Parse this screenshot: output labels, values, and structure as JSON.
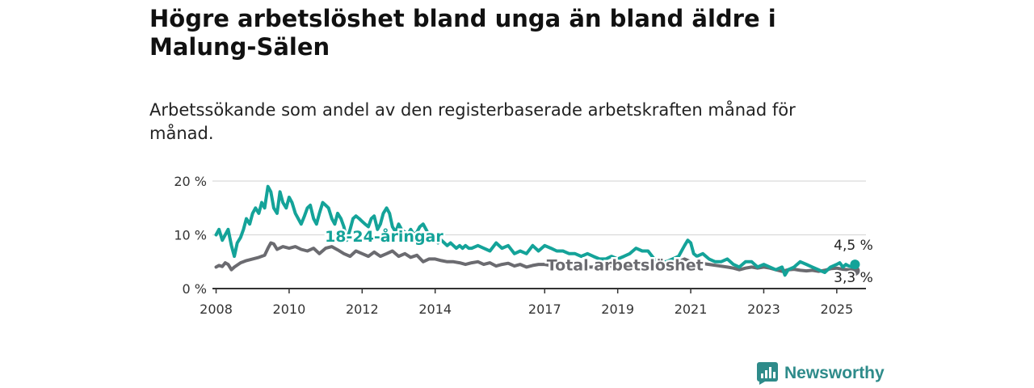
{
  "title": "Högre arbetslöshet bland unga än bland äldre i Malung-Sälen",
  "subtitle": "Arbetssökande som andel av den registerbaserade arbetskraften månad för månad.",
  "brand": {
    "name": "Newsworthy",
    "icon": "bar-chart-logo-icon"
  },
  "colors": {
    "youth": "#14a399",
    "total": "#6b6b70",
    "grid": "#d9d9d9",
    "axis": "#333333",
    "brand": "#2e8b8a"
  },
  "chart_data": {
    "type": "line",
    "title": "Högre arbetslöshet bland unga än bland äldre i Malung-Sälen",
    "subtitle": "Arbetssökande som andel av den registerbaserade arbetskraften månad för månad.",
    "xlabel": "",
    "ylabel": "",
    "y_unit": "%",
    "ylim": [
      0,
      20
    ],
    "y_ticks": [
      0,
      10,
      20
    ],
    "y_tick_labels": [
      "0 %",
      "10 %",
      "20 %"
    ],
    "x_ticks": [
      2008,
      2010,
      2012,
      2014,
      2017,
      2019,
      2021,
      2023,
      2025
    ],
    "x_tick_labels": [
      "2008",
      "2010",
      "2012",
      "2014",
      "2017",
      "2019",
      "2021",
      "2023",
      "2025"
    ],
    "xlim": [
      2007.9,
      2025.8
    ],
    "grid": "horizontal",
    "legend": "inline labels",
    "series": [
      {
        "name": "18-24-åringar",
        "label_pos": [
          2012.6,
          9.8
        ],
        "end_label": "4,5 %",
        "points": [
          [
            2008.0,
            10.0
          ],
          [
            2008.08,
            11.0
          ],
          [
            2008.17,
            9.0
          ],
          [
            2008.25,
            10.0
          ],
          [
            2008.33,
            11.0
          ],
          [
            2008.42,
            8.0
          ],
          [
            2008.5,
            6.0
          ],
          [
            2008.58,
            8.5
          ],
          [
            2008.67,
            9.5
          ],
          [
            2008.75,
            11.0
          ],
          [
            2008.83,
            13.0
          ],
          [
            2008.92,
            12.0
          ],
          [
            2009.0,
            14.0
          ],
          [
            2009.08,
            15.0
          ],
          [
            2009.17,
            14.0
          ],
          [
            2009.25,
            16.0
          ],
          [
            2009.33,
            15.0
          ],
          [
            2009.42,
            19.0
          ],
          [
            2009.5,
            18.0
          ],
          [
            2009.58,
            15.0
          ],
          [
            2009.67,
            14.0
          ],
          [
            2009.75,
            18.0
          ],
          [
            2009.83,
            16.0
          ],
          [
            2009.92,
            15.0
          ],
          [
            2010.0,
            17.0
          ],
          [
            2010.08,
            16.0
          ],
          [
            2010.17,
            14.0
          ],
          [
            2010.25,
            13.0
          ],
          [
            2010.33,
            12.0
          ],
          [
            2010.42,
            13.5
          ],
          [
            2010.5,
            15.0
          ],
          [
            2010.58,
            15.5
          ],
          [
            2010.67,
            13.0
          ],
          [
            2010.75,
            12.0
          ],
          [
            2010.83,
            14.0
          ],
          [
            2010.92,
            16.0
          ],
          [
            2011.0,
            15.5
          ],
          [
            2011.08,
            15.0
          ],
          [
            2011.17,
            13.0
          ],
          [
            2011.25,
            12.0
          ],
          [
            2011.33,
            14.0
          ],
          [
            2011.42,
            13.0
          ],
          [
            2011.5,
            11.5
          ],
          [
            2011.58,
            9.0
          ],
          [
            2011.67,
            11.0
          ],
          [
            2011.75,
            13.0
          ],
          [
            2011.83,
            13.5
          ],
          [
            2011.92,
            13.0
          ],
          [
            2012.0,
            12.5
          ],
          [
            2012.08,
            12.0
          ],
          [
            2012.17,
            11.5
          ],
          [
            2012.25,
            13.0
          ],
          [
            2012.33,
            13.5
          ],
          [
            2012.42,
            11.0
          ],
          [
            2012.5,
            12.0
          ],
          [
            2012.58,
            14.0
          ],
          [
            2012.67,
            15.0
          ],
          [
            2012.75,
            14.0
          ],
          [
            2012.83,
            11.5
          ],
          [
            2012.92,
            10.5
          ],
          [
            2013.0,
            12.0
          ],
          [
            2013.08,
            11.0
          ],
          [
            2013.17,
            10.5
          ],
          [
            2013.25,
            10.0
          ],
          [
            2013.33,
            11.0
          ],
          [
            2013.42,
            10.0
          ],
          [
            2013.5,
            10.5
          ],
          [
            2013.58,
            11.5
          ],
          [
            2013.67,
            12.0
          ],
          [
            2013.75,
            11.0
          ],
          [
            2013.83,
            10.0
          ],
          [
            2013.92,
            9.5
          ],
          [
            2014.0,
            9.0
          ],
          [
            2014.08,
            8.5
          ],
          [
            2014.17,
            9.0
          ],
          [
            2014.25,
            8.5
          ],
          [
            2014.33,
            8.0
          ],
          [
            2014.42,
            8.5
          ],
          [
            2014.5,
            8.0
          ],
          [
            2014.58,
            7.5
          ],
          [
            2014.67,
            8.0
          ],
          [
            2014.75,
            7.5
          ],
          [
            2014.83,
            8.0
          ],
          [
            2014.92,
            7.5
          ],
          [
            2015.0,
            7.5
          ],
          [
            2015.17,
            8.0
          ],
          [
            2015.33,
            7.5
          ],
          [
            2015.5,
            7.0
          ],
          [
            2015.67,
            8.5
          ],
          [
            2015.83,
            7.5
          ],
          [
            2016.0,
            8.0
          ],
          [
            2016.17,
            6.5
          ],
          [
            2016.33,
            7.0
          ],
          [
            2016.5,
            6.5
          ],
          [
            2016.67,
            8.0
          ],
          [
            2016.83,
            7.0
          ],
          [
            2017.0,
            8.0
          ],
          [
            2017.17,
            7.5
          ],
          [
            2017.33,
            7.0
          ],
          [
            2017.5,
            7.0
          ],
          [
            2017.67,
            6.5
          ],
          [
            2017.83,
            6.5
          ],
          [
            2018.0,
            6.0
          ],
          [
            2018.17,
            6.5
          ],
          [
            2018.33,
            6.0
          ],
          [
            2018.5,
            5.5
          ],
          [
            2018.67,
            5.5
          ],
          [
            2018.83,
            6.0
          ],
          [
            2019.0,
            5.5
          ],
          [
            2019.17,
            6.0
          ],
          [
            2019.33,
            6.5
          ],
          [
            2019.5,
            7.5
          ],
          [
            2019.67,
            7.0
          ],
          [
            2019.83,
            7.0
          ],
          [
            2020.0,
            5.5
          ],
          [
            2020.17,
            5.0
          ],
          [
            2020.33,
            5.0
          ],
          [
            2020.5,
            5.5
          ],
          [
            2020.67,
            6.0
          ],
          [
            2020.83,
            8.0
          ],
          [
            2020.92,
            9.0
          ],
          [
            2021.0,
            8.5
          ],
          [
            2021.08,
            6.5
          ],
          [
            2021.17,
            6.0
          ],
          [
            2021.33,
            6.5
          ],
          [
            2021.5,
            5.5
          ],
          [
            2021.67,
            5.0
          ],
          [
            2021.83,
            5.0
          ],
          [
            2022.0,
            5.5
          ],
          [
            2022.17,
            4.5
          ],
          [
            2022.33,
            4.0
          ],
          [
            2022.5,
            5.0
          ],
          [
            2022.67,
            5.0
          ],
          [
            2022.83,
            4.0
          ],
          [
            2023.0,
            4.5
          ],
          [
            2023.17,
            4.0
          ],
          [
            2023.33,
            3.5
          ],
          [
            2023.5,
            4.0
          ],
          [
            2023.58,
            2.5
          ],
          [
            2023.67,
            3.5
          ],
          [
            2023.83,
            4.0
          ],
          [
            2024.0,
            5.0
          ],
          [
            2024.17,
            4.5
          ],
          [
            2024.33,
            4.0
          ],
          [
            2024.5,
            3.5
          ],
          [
            2024.67,
            3.0
          ],
          [
            2024.83,
            4.0
          ],
          [
            2025.0,
            4.5
          ],
          [
            2025.08,
            4.8
          ],
          [
            2025.17,
            4.0
          ],
          [
            2025.25,
            4.5
          ],
          [
            2025.33,
            4.2
          ],
          [
            2025.42,
            4.0
          ],
          [
            2025.5,
            4.5
          ]
        ]
      },
      {
        "name": "Total arbetslöshet",
        "label_pos": [
          2019.2,
          4.4
        ],
        "end_label": "3,3 %",
        "points": [
          [
            2008.0,
            4.0
          ],
          [
            2008.08,
            4.3
          ],
          [
            2008.17,
            4.1
          ],
          [
            2008.25,
            4.8
          ],
          [
            2008.33,
            4.5
          ],
          [
            2008.42,
            3.5
          ],
          [
            2008.5,
            4.0
          ],
          [
            2008.67,
            4.8
          ],
          [
            2008.83,
            5.2
          ],
          [
            2009.0,
            5.5
          ],
          [
            2009.17,
            5.8
          ],
          [
            2009.33,
            6.2
          ],
          [
            2009.42,
            7.5
          ],
          [
            2009.5,
            8.5
          ],
          [
            2009.58,
            8.3
          ],
          [
            2009.67,
            7.3
          ],
          [
            2009.83,
            7.8
          ],
          [
            2010.0,
            7.5
          ],
          [
            2010.17,
            7.8
          ],
          [
            2010.33,
            7.3
          ],
          [
            2010.5,
            7.0
          ],
          [
            2010.67,
            7.5
          ],
          [
            2010.83,
            6.5
          ],
          [
            2011.0,
            7.5
          ],
          [
            2011.17,
            7.8
          ],
          [
            2011.33,
            7.2
          ],
          [
            2011.5,
            6.5
          ],
          [
            2011.67,
            6.0
          ],
          [
            2011.83,
            7.0
          ],
          [
            2012.0,
            6.5
          ],
          [
            2012.17,
            6.0
          ],
          [
            2012.33,
            6.8
          ],
          [
            2012.5,
            6.0
          ],
          [
            2012.67,
            6.5
          ],
          [
            2012.83,
            7.0
          ],
          [
            2013.0,
            6.0
          ],
          [
            2013.17,
            6.5
          ],
          [
            2013.33,
            5.8
          ],
          [
            2013.5,
            6.2
          ],
          [
            2013.67,
            5.0
          ],
          [
            2013.83,
            5.5
          ],
          [
            2014.0,
            5.5
          ],
          [
            2014.17,
            5.2
          ],
          [
            2014.33,
            5.0
          ],
          [
            2014.5,
            5.0
          ],
          [
            2014.67,
            4.8
          ],
          [
            2014.83,
            4.5
          ],
          [
            2015.0,
            4.8
          ],
          [
            2015.17,
            5.0
          ],
          [
            2015.33,
            4.5
          ],
          [
            2015.5,
            4.8
          ],
          [
            2015.67,
            4.2
          ],
          [
            2015.83,
            4.5
          ],
          [
            2016.0,
            4.7
          ],
          [
            2016.17,
            4.2
          ],
          [
            2016.33,
            4.5
          ],
          [
            2016.5,
            4.0
          ],
          [
            2016.67,
            4.3
          ],
          [
            2016.83,
            4.5
          ],
          [
            2017.0,
            4.5
          ],
          [
            2017.17,
            4.3
          ],
          [
            2017.33,
            4.0
          ],
          [
            2017.5,
            4.4
          ],
          [
            2017.67,
            4.0
          ],
          [
            2017.83,
            4.2
          ],
          [
            2018.0,
            4.0
          ],
          [
            2018.5,
            4.0
          ],
          [
            2019.0,
            4.3
          ],
          [
            2019.5,
            4.0
          ],
          [
            2020.0,
            4.3
          ],
          [
            2020.5,
            4.5
          ],
          [
            2020.83,
            5.5
          ],
          [
            2021.0,
            5.0
          ],
          [
            2021.5,
            4.5
          ],
          [
            2022.0,
            4.0
          ],
          [
            2022.17,
            3.8
          ],
          [
            2022.33,
            3.5
          ],
          [
            2022.5,
            3.8
          ],
          [
            2022.67,
            4.0
          ],
          [
            2022.83,
            3.8
          ],
          [
            2023.0,
            4.0
          ],
          [
            2023.17,
            3.8
          ],
          [
            2023.33,
            3.5
          ],
          [
            2023.5,
            3.2
          ],
          [
            2023.67,
            3.5
          ],
          [
            2023.83,
            3.6
          ],
          [
            2024.0,
            3.4
          ],
          [
            2024.17,
            3.3
          ],
          [
            2024.33,
            3.4
          ],
          [
            2024.5,
            3.2
          ],
          [
            2024.67,
            3.4
          ],
          [
            2024.83,
            3.7
          ],
          [
            2025.0,
            3.8
          ],
          [
            2025.17,
            3.6
          ],
          [
            2025.33,
            3.5
          ],
          [
            2025.5,
            3.3
          ]
        ]
      }
    ]
  }
}
